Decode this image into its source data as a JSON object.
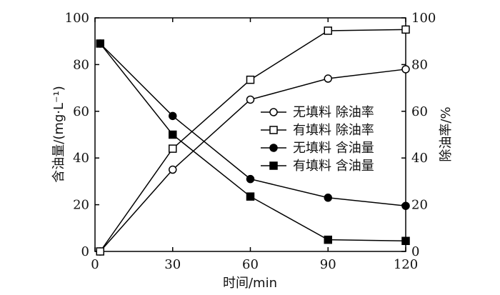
{
  "chart_data": {
    "type": "line",
    "x": [
      2,
      30,
      60,
      90,
      120
    ],
    "xlim": [
      0,
      120
    ],
    "x_ticks": [
      "0",
      "30",
      "60",
      "90",
      "120"
    ],
    "xlabel": "时间/min",
    "y_left": {
      "label": "含油量/(mg·L⁻¹)",
      "ylim": [
        0,
        100
      ],
      "ticks": [
        "0",
        "20",
        "40",
        "60",
        "80",
        "100"
      ]
    },
    "y_right": {
      "label": "除油率/%",
      "ylim": [
        0,
        100
      ],
      "ticks": [
        "0",
        "20",
        "40",
        "60",
        "80",
        "100"
      ]
    },
    "series": [
      {
        "name": "无填料 除油率",
        "axis": "right",
        "marker": "circle-open",
        "values": [
          0,
          35,
          65,
          74,
          78
        ]
      },
      {
        "name": "有填料 除油率",
        "axis": "right",
        "marker": "square-open",
        "values": [
          0,
          44,
          73.5,
          94.5,
          95
        ]
      },
      {
        "name": "无填料 含油量",
        "axis": "left",
        "marker": "circle-filled",
        "values": [
          89,
          58,
          31,
          23,
          19.5
        ]
      },
      {
        "name": "有填料 含油量",
        "axis": "left",
        "marker": "square-filled",
        "values": [
          89,
          50,
          23.5,
          5,
          4.5
        ]
      }
    ],
    "legend": "center-right",
    "grid": false
  }
}
